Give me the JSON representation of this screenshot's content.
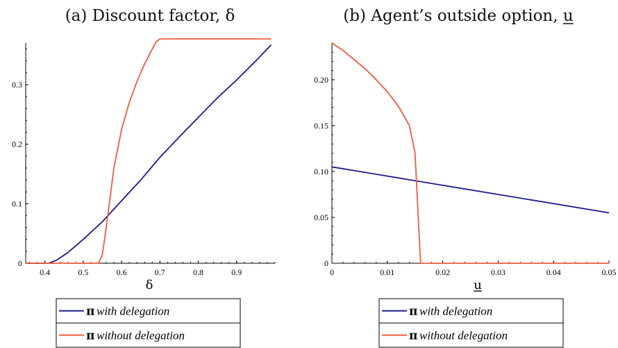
{
  "chart_data": [
    {
      "type": "line",
      "title": "(a) Discount factor, δ",
      "xlabel": "δ",
      "ylabel": "",
      "xlim": [
        0.35,
        1.0
      ],
      "ylim": [
        0,
        0.37
      ],
      "xticks": [
        "0.4",
        "0.5",
        "0.6",
        "0.7",
        "0.8",
        "0.9"
      ],
      "yticks": [
        "0",
        "0.1",
        "0.2",
        "0.3"
      ],
      "legend": {
        "placement": "bottom",
        "entries": [
          {
            "symbol": "π",
            "label": "with delegation"
          },
          {
            "symbol": "π",
            "label": "without delegation"
          }
        ]
      },
      "series": [
        {
          "name": "π with delegation",
          "color": "#1a1a8c",
          "x": [
            0.35,
            0.41,
            0.43,
            0.46,
            0.5,
            0.55,
            0.6,
            0.65,
            0.7,
            0.75,
            0.8,
            0.85,
            0.9,
            0.95,
            0.99
          ],
          "y": [
            0.0,
            0.0,
            0.005,
            0.018,
            0.04,
            0.07,
            0.105,
            0.14,
            0.178,
            0.212,
            0.245,
            0.278,
            0.308,
            0.34,
            0.367
          ]
        },
        {
          "name": "π without delegation",
          "color": "#f05a3c",
          "x": [
            0.35,
            0.54,
            0.55,
            0.56,
            0.58,
            0.6,
            0.62,
            0.64,
            0.66,
            0.68,
            0.69,
            0.7,
            0.72,
            0.8,
            0.9,
            0.99
          ],
          "y": [
            0.0,
            0.0,
            0.015,
            0.06,
            0.16,
            0.225,
            0.27,
            0.305,
            0.335,
            0.36,
            0.372,
            0.377,
            0.377,
            0.377,
            0.377,
            0.377
          ]
        }
      ]
    },
    {
      "type": "line",
      "title": "(b) Agent’s outside option, u",
      "xlabel": "u",
      "ylabel": "",
      "xlim": [
        0,
        0.05
      ],
      "ylim": [
        0,
        0.24
      ],
      "xticks": [
        "0",
        "0.01",
        "0.02",
        "0.03",
        "0.04",
        "0.05"
      ],
      "yticks": [
        "0",
        "0.05",
        "0.10",
        "0.15",
        "0.20"
      ],
      "legend": {
        "placement": "bottom",
        "entries": [
          {
            "symbol": "π",
            "label": "with delegation"
          },
          {
            "symbol": "π",
            "label": "without delegation"
          }
        ]
      },
      "series": [
        {
          "name": "π with delegation",
          "color": "#1a1a8c",
          "x": [
            0,
            0.05
          ],
          "y": [
            0.105,
            0.055
          ]
        },
        {
          "name": "π without delegation",
          "color": "#f05a3c",
          "x": [
            0,
            0.002,
            0.004,
            0.006,
            0.008,
            0.01,
            0.012,
            0.014,
            0.015,
            0.0155,
            0.016,
            0.02,
            0.03,
            0.04,
            0.05
          ],
          "y": [
            0.24,
            0.232,
            0.222,
            0.212,
            0.2,
            0.187,
            0.171,
            0.15,
            0.12,
            0.06,
            0.0,
            0.0,
            0.0,
            0.0,
            0.0
          ]
        }
      ]
    }
  ]
}
